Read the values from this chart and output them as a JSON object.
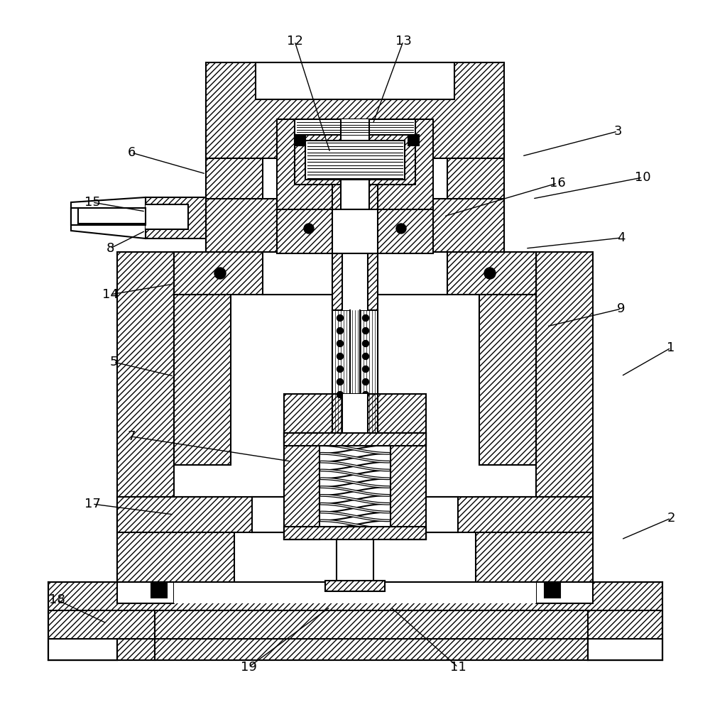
{
  "bg_color": "#ffffff",
  "line_color": "#000000",
  "fig_width": 10.0,
  "fig_height": 9.89,
  "annotation_lines": [
    [
      "1",
      [
        945,
        490
      ],
      [
        875,
        530
      ]
    ],
    [
      "2",
      [
        945,
        730
      ],
      [
        875,
        760
      ]
    ],
    [
      "3",
      [
        870,
        185
      ],
      [
        735,
        220
      ]
    ],
    [
      "4",
      [
        875,
        335
      ],
      [
        740,
        350
      ]
    ],
    [
      "5",
      [
        160,
        510
      ],
      [
        245,
        530
      ]
    ],
    [
      "6",
      [
        185,
        215
      ],
      [
        290,
        245
      ]
    ],
    [
      "7",
      [
        185,
        615
      ],
      [
        410,
        650
      ]
    ],
    [
      "8",
      [
        155,
        350
      ],
      [
        205,
        325
      ]
    ],
    [
      "9",
      [
        875,
        435
      ],
      [
        770,
        460
      ]
    ],
    [
      "10",
      [
        905,
        250
      ],
      [
        750,
        280
      ]
    ],
    [
      "11",
      [
        645,
        940
      ],
      [
        550,
        855
      ]
    ],
    [
      "12",
      [
        415,
        58
      ],
      [
        465,
        215
      ]
    ],
    [
      "13",
      [
        568,
        58
      ],
      [
        525,
        175
      ]
    ],
    [
      "14",
      [
        155,
        415
      ],
      [
        245,
        400
      ]
    ],
    [
      "15",
      [
        130,
        285
      ],
      [
        205,
        298
      ]
    ],
    [
      "16",
      [
        785,
        258
      ],
      [
        625,
        305
      ]
    ],
    [
      "17",
      [
        130,
        710
      ],
      [
        245,
        725
      ]
    ],
    [
      "18",
      [
        80,
        845
      ],
      [
        150,
        878
      ]
    ],
    [
      "19",
      [
        350,
        940
      ],
      [
        465,
        855
      ]
    ]
  ]
}
